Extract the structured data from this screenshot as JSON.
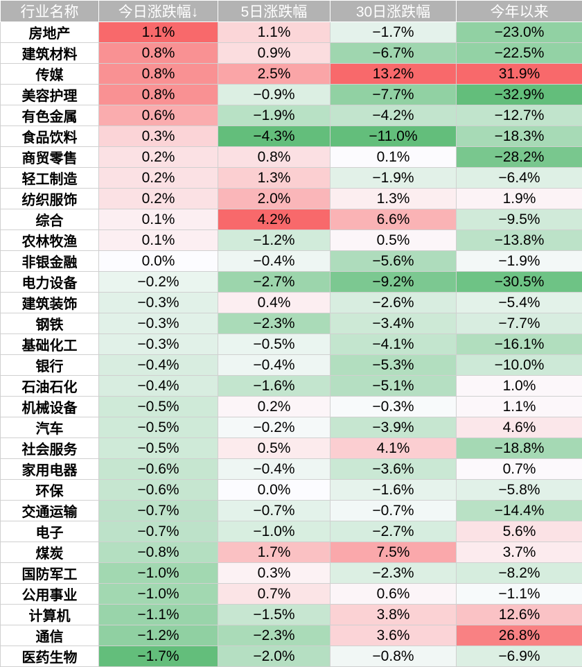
{
  "chart_data": {
    "type": "table",
    "columns": [
      "行业名称",
      "今日涨跌幅↓",
      "5日涨跌幅",
      "30日涨跌幅",
      "今年以来"
    ],
    "rows": [
      {
        "name": "房地产",
        "values": [
          "1.1%",
          "1.1%",
          "−1.7%",
          "−23.0%"
        ],
        "nums": [
          1.1,
          1.1,
          -1.7,
          -23.0
        ]
      },
      {
        "name": "建筑材料",
        "values": [
          "0.8%",
          "0.9%",
          "−6.7%",
          "−22.5%"
        ],
        "nums": [
          0.8,
          0.9,
          -6.7,
          -22.5
        ]
      },
      {
        "name": "传媒",
        "values": [
          "0.8%",
          "2.5%",
          "13.2%",
          "31.9%"
        ],
        "nums": [
          0.8,
          2.5,
          13.2,
          31.9
        ]
      },
      {
        "name": "美容护理",
        "values": [
          "0.8%",
          "−0.9%",
          "−7.7%",
          "−32.9%"
        ],
        "nums": [
          0.8,
          -0.9,
          -7.7,
          -32.9
        ]
      },
      {
        "name": "有色金属",
        "values": [
          "0.6%",
          "−1.9%",
          "−4.2%",
          "−12.7%"
        ],
        "nums": [
          0.6,
          -1.9,
          -4.2,
          -12.7
        ]
      },
      {
        "name": "食品饮料",
        "values": [
          "0.3%",
          "−4.3%",
          "−11.0%",
          "−18.3%"
        ],
        "nums": [
          0.3,
          -4.3,
          -11.0,
          -18.3
        ]
      },
      {
        "name": "商贸零售",
        "values": [
          "0.2%",
          "0.8%",
          "0.1%",
          "−28.2%"
        ],
        "nums": [
          0.2,
          0.8,
          0.1,
          -28.2
        ]
      },
      {
        "name": "轻工制造",
        "values": [
          "0.2%",
          "1.3%",
          "−1.9%",
          "−6.4%"
        ],
        "nums": [
          0.2,
          1.3,
          -1.9,
          -6.4
        ]
      },
      {
        "name": "纺织服饰",
        "values": [
          "0.2%",
          "2.0%",
          "1.3%",
          "1.9%"
        ],
        "nums": [
          0.2,
          2.0,
          1.3,
          1.9
        ]
      },
      {
        "name": "综合",
        "values": [
          "0.1%",
          "4.2%",
          "6.6%",
          "−9.5%"
        ],
        "nums": [
          0.1,
          4.2,
          6.6,
          -9.5
        ]
      },
      {
        "name": "农林牧渔",
        "values": [
          "0.1%",
          "−1.2%",
          "0.5%",
          "−13.8%"
        ],
        "nums": [
          0.1,
          -1.2,
          0.5,
          -13.8
        ]
      },
      {
        "name": "非银金融",
        "values": [
          "0.0%",
          "−0.4%",
          "−5.6%",
          "−1.9%"
        ],
        "nums": [
          0.0,
          -0.4,
          -5.6,
          -1.9
        ]
      },
      {
        "name": "电力设备",
        "values": [
          "−0.2%",
          "−2.7%",
          "−9.2%",
          "−30.5%"
        ],
        "nums": [
          -0.2,
          -2.7,
          -9.2,
          -30.5
        ]
      },
      {
        "name": "建筑装饰",
        "values": [
          "−0.3%",
          "0.4%",
          "−2.6%",
          "−5.4%"
        ],
        "nums": [
          -0.3,
          0.4,
          -2.6,
          -5.4
        ]
      },
      {
        "name": "钢铁",
        "values": [
          "−0.3%",
          "−2.3%",
          "−3.4%",
          "−7.7%"
        ],
        "nums": [
          -0.3,
          -2.3,
          -3.4,
          -7.7
        ]
      },
      {
        "name": "基础化工",
        "values": [
          "−0.3%",
          "−0.5%",
          "−4.1%",
          "−16.1%"
        ],
        "nums": [
          -0.3,
          -0.5,
          -4.1,
          -16.1
        ]
      },
      {
        "name": "银行",
        "values": [
          "−0.4%",
          "−0.4%",
          "−5.3%",
          "−10.0%"
        ],
        "nums": [
          -0.4,
          -0.4,
          -5.3,
          -10.0
        ]
      },
      {
        "name": "石油石化",
        "values": [
          "−0.4%",
          "−1.6%",
          "−5.1%",
          "1.0%"
        ],
        "nums": [
          -0.4,
          -1.6,
          -5.1,
          1.0
        ]
      },
      {
        "name": "机械设备",
        "values": [
          "−0.5%",
          "0.2%",
          "−0.3%",
          "1.1%"
        ],
        "nums": [
          -0.5,
          0.2,
          -0.3,
          1.1
        ]
      },
      {
        "name": "汽车",
        "values": [
          "−0.5%",
          "−0.2%",
          "−3.9%",
          "4.6%"
        ],
        "nums": [
          -0.5,
          -0.2,
          -3.9,
          4.6
        ]
      },
      {
        "name": "社会服务",
        "values": [
          "−0.5%",
          "0.5%",
          "4.1%",
          "−18.8%"
        ],
        "nums": [
          -0.5,
          0.5,
          4.1,
          -18.8
        ]
      },
      {
        "name": "家用电器",
        "values": [
          "−0.6%",
          "−0.4%",
          "−3.6%",
          "0.7%"
        ],
        "nums": [
          -0.6,
          -0.4,
          -3.6,
          0.7
        ]
      },
      {
        "name": "环保",
        "values": [
          "−0.6%",
          "0.0%",
          "−1.6%",
          "−5.8%"
        ],
        "nums": [
          -0.6,
          0.0,
          -1.6,
          -5.8
        ]
      },
      {
        "name": "交通运输",
        "values": [
          "−0.7%",
          "−0.7%",
          "−0.7%",
          "−14.4%"
        ],
        "nums": [
          -0.7,
          -0.7,
          -0.7,
          -14.4
        ]
      },
      {
        "name": "电子",
        "values": [
          "−0.7%",
          "−1.0%",
          "−2.7%",
          "5.6%"
        ],
        "nums": [
          -0.7,
          -1.0,
          -2.7,
          5.6
        ]
      },
      {
        "name": "煤炭",
        "values": [
          "−0.8%",
          "1.7%",
          "7.5%",
          "3.7%"
        ],
        "nums": [
          -0.8,
          1.7,
          7.5,
          3.7
        ]
      },
      {
        "name": "国防军工",
        "values": [
          "−1.0%",
          "0.3%",
          "−2.3%",
          "−8.2%"
        ],
        "nums": [
          -1.0,
          0.3,
          -2.3,
          -8.2
        ]
      },
      {
        "name": "公用事业",
        "values": [
          "−1.0%",
          "0.7%",
          "0.6%",
          "−1.1%"
        ],
        "nums": [
          -1.0,
          0.7,
          0.6,
          -1.1
        ]
      },
      {
        "name": "计算机",
        "values": [
          "−1.1%",
          "−1.5%",
          "3.8%",
          "12.6%"
        ],
        "nums": [
          -1.1,
          -1.5,
          3.8,
          12.6
        ]
      },
      {
        "name": "通信",
        "values": [
          "−1.2%",
          "−2.3%",
          "3.6%",
          "26.8%"
        ],
        "nums": [
          -1.2,
          -2.3,
          3.6,
          26.8
        ]
      },
      {
        "name": "医药生物",
        "values": [
          "−1.7%",
          "−2.0%",
          "−0.8%",
          "−6.9%"
        ],
        "nums": [
          -1.7,
          -2.0,
          -0.8,
          -6.9
        ]
      }
    ],
    "colors": {
      "header_bg": "#b3b3b3",
      "header_text": "#ffffff",
      "positive": "#f8696b",
      "negative": "#63be7b",
      "neutral": "#fcfcff"
    }
  }
}
